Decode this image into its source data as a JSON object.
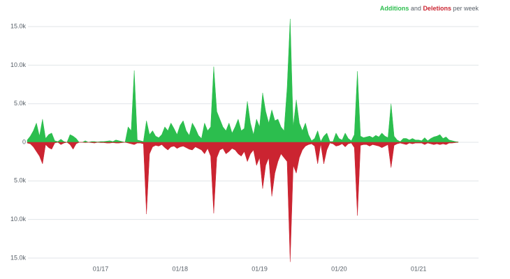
{
  "chart_data": {
    "type": "area",
    "legend_joiner": "and",
    "legend_suffix": "per week",
    "categories": [
      null,
      null,
      null,
      null,
      null,
      null,
      null,
      null,
      null,
      null,
      null,
      null,
      null,
      null,
      null,
      null,
      null,
      null,
      null,
      null,
      null,
      null,
      null,
      null,
      "01/17",
      null,
      null,
      null,
      null,
      null,
      null,
      null,
      null,
      null,
      null,
      null,
      null,
      null,
      null,
      null,
      null,
      null,
      null,
      null,
      null,
      null,
      null,
      null,
      null,
      null,
      "01/18",
      null,
      null,
      null,
      null,
      null,
      null,
      null,
      null,
      null,
      null,
      null,
      null,
      null,
      null,
      null,
      null,
      null,
      null,
      null,
      null,
      null,
      null,
      null,
      null,
      null,
      "01/19",
      null,
      null,
      null,
      null,
      null,
      null,
      null,
      null,
      null,
      null,
      null,
      null,
      null,
      null,
      null,
      null,
      null,
      null,
      null,
      null,
      null,
      null,
      null,
      null,
      null,
      "01/20",
      null,
      null,
      null,
      null,
      null,
      null,
      null,
      null,
      null,
      null,
      null,
      null,
      null,
      null,
      null,
      null,
      null,
      null,
      null,
      null,
      null,
      null,
      null,
      null,
      null,
      "01/21",
      null,
      null,
      null,
      null,
      null,
      null,
      null,
      null,
      null,
      null,
      null,
      null,
      null
    ],
    "series": [
      {
        "name": "Additions",
        "color": "#2cbe4e",
        "values": [
          300,
          800,
          1500,
          2500,
          800,
          3000,
          500,
          1000,
          1200,
          200,
          100,
          400,
          100,
          0,
          1000,
          800,
          500,
          0,
          0,
          200,
          0,
          100,
          100,
          50,
          100,
          100,
          150,
          200,
          100,
          300,
          200,
          100,
          0,
          2000,
          1500,
          9300,
          300,
          200,
          100,
          2800,
          1000,
          1500,
          800,
          600,
          1000,
          2000,
          1500,
          2500,
          1800,
          1000,
          2200,
          2800,
          1500,
          900,
          2500,
          1800,
          900,
          500,
          2500,
          1500,
          2000,
          9800,
          4000,
          3000,
          2000,
          1500,
          2500,
          1200,
          2000,
          3000,
          1500,
          1800,
          5300,
          2500,
          1000,
          3000,
          2000,
          6400,
          4000,
          2500,
          4200,
          2800,
          3000,
          2000,
          1500,
          7000,
          16000,
          2000,
          5500,
          2500,
          1500,
          2500,
          1000,
          200,
          500,
          1500,
          100,
          800,
          1200,
          100,
          100,
          1200,
          500,
          300,
          1200,
          500,
          200,
          1000,
          9200,
          800,
          600,
          700,
          800,
          600,
          900,
          700,
          1200,
          800,
          600,
          5000,
          800,
          300,
          100,
          500,
          500,
          300,
          500,
          300,
          300,
          200,
          600,
          200,
          500,
          700,
          800,
          1000,
          500,
          700,
          300,
          200,
          100,
          50
        ]
      },
      {
        "name": "Deletions",
        "color": "#cb2431",
        "values": [
          -100,
          -200,
          -600,
          -1200,
          -1800,
          -2800,
          -300,
          -700,
          -900,
          -100,
          0,
          -300,
          -100,
          0,
          -300,
          -900,
          -200,
          0,
          0,
          -50,
          0,
          -50,
          -100,
          0,
          -50,
          -50,
          -100,
          -100,
          -50,
          -100,
          -100,
          -50,
          0,
          -100,
          -200,
          -300,
          -100,
          -100,
          -200,
          -9300,
          -1500,
          -600,
          -400,
          -500,
          -300,
          -700,
          -1000,
          -600,
          -500,
          -800,
          -600,
          -500,
          -700,
          -900,
          -1000,
          -600,
          -800,
          -1000,
          -1500,
          -800,
          -1800,
          -9200,
          -2000,
          -1000,
          -800,
          -1500,
          -1200,
          -800,
          -1000,
          -1500,
          -1800,
          -1200,
          -2500,
          -1500,
          -1000,
          -3000,
          -2000,
          -6000,
          -3000,
          -2000,
          -7000,
          -4000,
          -2500,
          -1500,
          -2000,
          -2500,
          -15500,
          -3000,
          -4000,
          -2000,
          -1000,
          -500,
          -300,
          -200,
          -500,
          -2800,
          -200,
          -2800,
          -1000,
          -100,
          -200,
          -500,
          -400,
          -200,
          -600,
          -200,
          -100,
          -700,
          -9500,
          -400,
          -300,
          -300,
          -500,
          -300,
          -400,
          -500,
          -700,
          -500,
          -300,
          -3300,
          -400,
          -200,
          -100,
          -200,
          -300,
          -100,
          -200,
          -100,
          -100,
          -100,
          -300,
          -100,
          -200,
          -300,
          -200,
          -300,
          -200,
          -300,
          -100,
          -100,
          -50,
          0
        ]
      }
    ],
    "ylim": [
      -16000,
      16000
    ],
    "yticks": [
      {
        "value": -15000,
        "label": "15.0k"
      },
      {
        "value": -10000,
        "label": "10.0k"
      },
      {
        "value": -5000,
        "label": "5.0k"
      },
      0,
      {
        "value": 5000,
        "label": "5.0k"
      },
      {
        "value": 10000,
        "label": "10.0k"
      },
      {
        "value": 15000,
        "label": "15.0k"
      }
    ],
    "grid": true
  }
}
